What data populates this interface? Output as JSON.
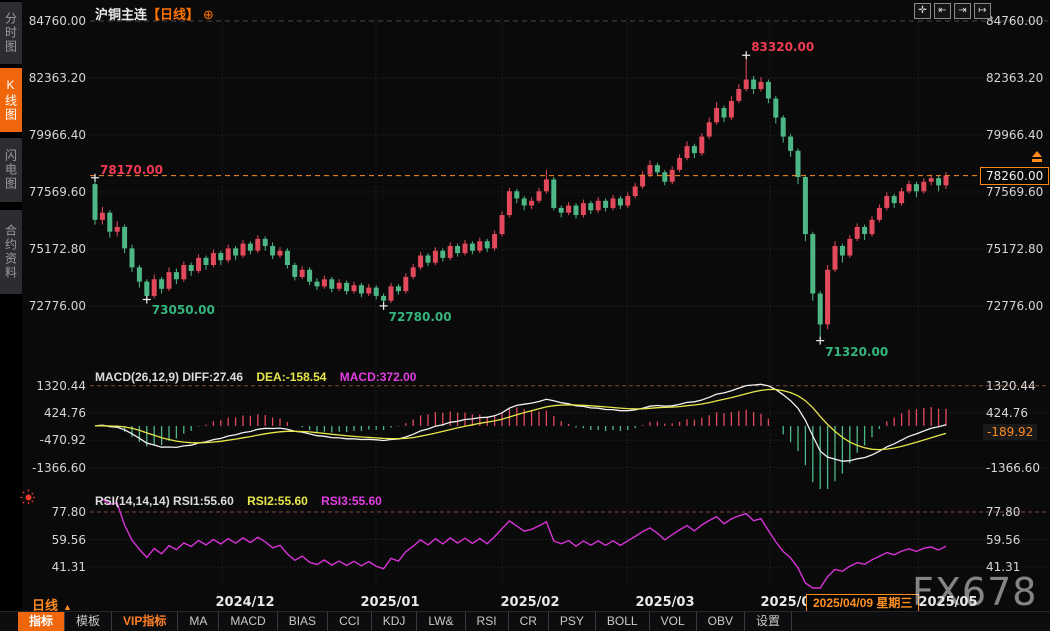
{
  "window": {
    "title_symbol": "沪铜主连",
    "title_period": "【日线】",
    "add_icon": "⊕"
  },
  "sidebar": {
    "items": [
      {
        "label": "分时图",
        "selected": false
      },
      {
        "label": "K线图",
        "selected": true
      },
      {
        "label": "闪电图",
        "selected": false
      },
      {
        "label": "合约资料",
        "selected": false
      }
    ]
  },
  "topbar_icons": [
    {
      "name": "crosshair-icon",
      "glyph": "✛"
    },
    {
      "name": "pan-left-icon",
      "glyph": "⇤"
    },
    {
      "name": "pan-right-icon",
      "glyph": "⇥"
    },
    {
      "name": "jump-latest-icon",
      "glyph": "↦"
    }
  ],
  "main_chart": {
    "y_axis_labels": [
      "84760.00",
      "82363.20",
      "79966.40",
      "77569.60",
      "75172.80",
      "72776.00"
    ],
    "y_axis_values": [
      84760,
      82363.2,
      79966.4,
      77569.6,
      75172.8,
      72776
    ],
    "last_price": "78260.00",
    "last_price_value": 78260
  },
  "macd": {
    "header_main": "MACD(26,12,9) DIFF:27.46",
    "header_dea": "DEA:-158.54",
    "header_macd": "MACD:372.00",
    "axis_labels": [
      "1320.44",
      "424.76",
      "-470.92",
      "-1366.60"
    ],
    "axis_values": [
      1320.44,
      424.76,
      -470.92,
      -1366.6
    ],
    "current_badge": "-189.92"
  },
  "rsi": {
    "header_main": "RSI(14,14,14) RSI1:55.60",
    "header_rsi2": "RSI2:55.60",
    "header_rsi3": "RSI3:55.60",
    "axis_labels": [
      "77.80",
      "59.56",
      "41.31"
    ],
    "axis_values": [
      77.8,
      59.56,
      41.31
    ]
  },
  "x_axis": {
    "labels": [
      "2024/12",
      "2025/01",
      "2025/02",
      "2025/03",
      "2025/04",
      "2025/05"
    ],
    "date_badge": "2025/04/09 星期三"
  },
  "footer": {
    "period_label": "日线",
    "period_arrow": "▲",
    "toolbar": [
      {
        "label": "指标",
        "state": "selected"
      },
      {
        "label": "模板",
        "state": "normal"
      },
      {
        "label": "VIP指标",
        "state": "vip"
      },
      {
        "label": "MA",
        "state": "normal"
      },
      {
        "label": "MACD",
        "state": "normal"
      },
      {
        "label": "BIAS",
        "state": "normal"
      },
      {
        "label": "CCI",
        "state": "normal"
      },
      {
        "label": "KDJ",
        "state": "normal"
      },
      {
        "label": "LW&",
        "state": "normal"
      },
      {
        "label": "RSI",
        "state": "normal"
      },
      {
        "label": "CR",
        "state": "normal"
      },
      {
        "label": "PSY",
        "state": "normal"
      },
      {
        "label": "BOLL",
        "state": "normal"
      },
      {
        "label": "VOL",
        "state": "normal"
      },
      {
        "label": "OBV",
        "state": "normal"
      },
      {
        "label": "设置",
        "state": "normal"
      }
    ]
  },
  "watermark": "FX678",
  "colors": {
    "candle_up": "#e2495b",
    "candle_down": "#4db886",
    "accent_orange": "#ff8a1e",
    "selected_tab": "#f0660a",
    "diff_line": "#f0f0f0",
    "dea_line": "#e7e74a",
    "rsi_line": "#d633d6",
    "ann_red": "#f23a52",
    "ann_green": "#35b57c"
  },
  "chart_data": {
    "type": "candlestick",
    "symbol": "沪铜主连",
    "period": "日线",
    "ohlc_order": [
      "open",
      "high",
      "low",
      "close"
    ],
    "y_range": [
      72776,
      84760
    ],
    "candles": [
      [
        77900,
        78170,
        76200,
        76400
      ],
      [
        76400,
        76950,
        76200,
        76700
      ],
      [
        76700,
        76800,
        75650,
        75900
      ],
      [
        75900,
        76350,
        75700,
        76100
      ],
      [
        76100,
        76200,
        75000,
        75200
      ],
      [
        75200,
        75350,
        74200,
        74400
      ],
      [
        74400,
        74500,
        73550,
        73800
      ],
      [
        73800,
        73900,
        73050,
        73200
      ],
      [
        73200,
        74100,
        73100,
        73900
      ],
      [
        73900,
        74000,
        73300,
        73500
      ],
      [
        73500,
        74400,
        73400,
        74200
      ],
      [
        74200,
        74350,
        73700,
        73900
      ],
      [
        73900,
        74650,
        73800,
        74500
      ],
      [
        74500,
        74600,
        74050,
        74250
      ],
      [
        74250,
        74950,
        74150,
        74800
      ],
      [
        74800,
        74900,
        74300,
        74500
      ],
      [
        74500,
        75150,
        74400,
        75000
      ],
      [
        75000,
        75100,
        74500,
        74700
      ],
      [
        74700,
        75350,
        74600,
        75200
      ],
      [
        75200,
        75300,
        74700,
        74900
      ],
      [
        74900,
        75550,
        74800,
        75400
      ],
      [
        75400,
        75500,
        74950,
        75100
      ],
      [
        75100,
        75750,
        75000,
        75600
      ],
      [
        75600,
        75700,
        75100,
        75300
      ],
      [
        75300,
        75450,
        74750,
        74900
      ],
      [
        74900,
        75250,
        74800,
        75100
      ],
      [
        75100,
        75200,
        74350,
        74500
      ],
      [
        74500,
        74600,
        73850,
        74000
      ],
      [
        74000,
        74450,
        73900,
        74300
      ],
      [
        74300,
        74400,
        73650,
        73800
      ],
      [
        73800,
        73950,
        73450,
        73600
      ],
      [
        73600,
        74050,
        73500,
        73900
      ],
      [
        73900,
        74000,
        73350,
        73500
      ],
      [
        73500,
        73900,
        73400,
        73750
      ],
      [
        73750,
        73850,
        73250,
        73400
      ],
      [
        73400,
        73800,
        73300,
        73650
      ],
      [
        73650,
        73750,
        73150,
        73300
      ],
      [
        73300,
        73700,
        73200,
        73550
      ],
      [
        73550,
        73650,
        73050,
        73200
      ],
      [
        73200,
        73300,
        72780,
        73000
      ],
      [
        73000,
        73750,
        72900,
        73600
      ],
      [
        73600,
        73700,
        73250,
        73400
      ],
      [
        73400,
        74150,
        73300,
        74000
      ],
      [
        74000,
        74550,
        73900,
        74400
      ],
      [
        74400,
        75050,
        74300,
        74900
      ],
      [
        74900,
        75000,
        74450,
        74600
      ],
      [
        74600,
        75250,
        74500,
        75100
      ],
      [
        75100,
        75200,
        74650,
        74800
      ],
      [
        74800,
        75450,
        74700,
        75300
      ],
      [
        75300,
        75400,
        74850,
        75000
      ],
      [
        75000,
        75550,
        74900,
        75400
      ],
      [
        75400,
        75500,
        74950,
        75100
      ],
      [
        75100,
        75650,
        75000,
        75500
      ],
      [
        75500,
        75600,
        75050,
        75200
      ],
      [
        75200,
        75950,
        75100,
        75800
      ],
      [
        75800,
        76750,
        75700,
        76600
      ],
      [
        76600,
        77750,
        76500,
        77600
      ],
      [
        77600,
        77700,
        77100,
        77300
      ],
      [
        77300,
        77400,
        76800,
        77000
      ],
      [
        77000,
        77350,
        76850,
        77200
      ],
      [
        77200,
        77750,
        77100,
        77600
      ],
      [
        77600,
        78500,
        77500,
        78100
      ],
      [
        78100,
        78200,
        76800,
        76900
      ],
      [
        76900,
        77000,
        76500,
        76700
      ],
      [
        76700,
        77150,
        76600,
        77000
      ],
      [
        77000,
        77100,
        76450,
        76600
      ],
      [
        76600,
        77250,
        76500,
        77100
      ],
      [
        77100,
        77200,
        76650,
        76800
      ],
      [
        76800,
        77350,
        76700,
        77200
      ],
      [
        77200,
        77300,
        76750,
        76900
      ],
      [
        76900,
        77450,
        76800,
        77300
      ],
      [
        77300,
        77400,
        76850,
        77000
      ],
      [
        77000,
        77550,
        76900,
        77400
      ],
      [
        77400,
        77950,
        77300,
        77800
      ],
      [
        77800,
        78450,
        77700,
        78300
      ],
      [
        78300,
        78900,
        78200,
        78700
      ],
      [
        78700,
        78800,
        78250,
        78400
      ],
      [
        78400,
        78500,
        77850,
        78000
      ],
      [
        78000,
        78650,
        77900,
        78500
      ],
      [
        78500,
        79150,
        78400,
        79000
      ],
      [
        79000,
        79700,
        78900,
        79500
      ],
      [
        79500,
        79600,
        79000,
        79200
      ],
      [
        79200,
        80050,
        79100,
        79900
      ],
      [
        79900,
        80700,
        79800,
        80500
      ],
      [
        80500,
        81350,
        80400,
        81100
      ],
      [
        81100,
        81200,
        80500,
        80700
      ],
      [
        80700,
        81600,
        80600,
        81400
      ],
      [
        81400,
        82100,
        81300,
        81900
      ],
      [
        81900,
        83320,
        81800,
        82300
      ],
      [
        82300,
        82450,
        81700,
        81900
      ],
      [
        81900,
        82400,
        81800,
        82200
      ],
      [
        82200,
        82300,
        81300,
        81500
      ],
      [
        81500,
        81600,
        80450,
        80700
      ],
      [
        80700,
        80800,
        79650,
        79900
      ],
      [
        79900,
        80000,
        79050,
        79300
      ],
      [
        79300,
        79400,
        77900,
        78200
      ],
      [
        78200,
        78300,
        75500,
        75800
      ],
      [
        75800,
        75900,
        73000,
        73300
      ],
      [
        73300,
        73400,
        71320,
        72000
      ],
      [
        72000,
        74500,
        71800,
        74300
      ],
      [
        74300,
        75500,
        74200,
        75300
      ],
      [
        75300,
        75400,
        74600,
        74900
      ],
      [
        74900,
        75750,
        74800,
        75600
      ],
      [
        75600,
        76250,
        75500,
        76100
      ],
      [
        76100,
        76200,
        75550,
        75800
      ],
      [
        75800,
        76550,
        75700,
        76400
      ],
      [
        76400,
        77050,
        76300,
        76900
      ],
      [
        76900,
        77550,
        76800,
        77400
      ],
      [
        77400,
        77500,
        76900,
        77100
      ],
      [
        77100,
        77750,
        77000,
        77600
      ],
      [
        77600,
        78050,
        77500,
        77900
      ],
      [
        77900,
        78000,
        77350,
        77600
      ],
      [
        77600,
        78150,
        77500,
        78000
      ],
      [
        78000,
        78300,
        77850,
        78150
      ],
      [
        78150,
        78250,
        77600,
        77850
      ],
      [
        77850,
        78400,
        77700,
        78260
      ]
    ],
    "annotations": [
      {
        "text": "78170.00",
        "value": 78170,
        "index": 0,
        "role": "first-high",
        "color": "red"
      },
      {
        "text": "83320.00",
        "value": 83320,
        "index": 88,
        "role": "period-high",
        "color": "red"
      },
      {
        "text": "73050.00",
        "value": 73050,
        "index": 7,
        "role": "swing-low",
        "color": "green"
      },
      {
        "text": "72780.00",
        "value": 72780,
        "index": 39,
        "role": "swing-low",
        "color": "green"
      },
      {
        "text": "71320.00",
        "value": 71320,
        "index": 98,
        "role": "period-low",
        "color": "green"
      }
    ],
    "indicators": {
      "macd": {
        "params": [
          26,
          12,
          9
        ],
        "diff": 27.46,
        "dea": -158.54,
        "macd": 372.0,
        "axis": [
          1320.44,
          424.76,
          -470.92,
          -1366.6
        ]
      },
      "rsi": {
        "params": [
          14,
          14,
          14
        ],
        "rsi1": 55.6,
        "rsi2": 55.6,
        "rsi3": 55.6,
        "axis": [
          77.8,
          59.56,
          41.31
        ]
      }
    }
  }
}
